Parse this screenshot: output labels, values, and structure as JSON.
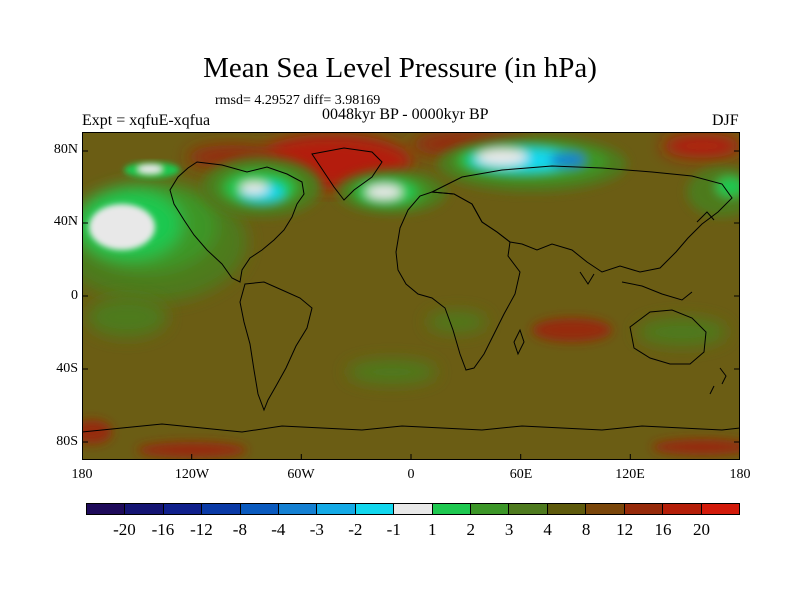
{
  "title": "Mean Sea Level Pressure (in hPa)",
  "stats": "rmsd= 4.29527 diff= 3.98169",
  "experiment": "Expt = xqfuE-xqfua",
  "period": "0048kyr BP - 0000kyr BP",
  "season": "DJF",
  "y_ticks": [
    "80N",
    "40N",
    "0",
    "40S",
    "80S"
  ],
  "x_ticks": [
    "180",
    "120W",
    "60W",
    "0",
    "60E",
    "120E",
    "180"
  ],
  "colorbar": {
    "labels": [
      "-20",
      "-16",
      "-12",
      "-8",
      "-4",
      "-3",
      "-2",
      "-1",
      "1",
      "2",
      "3",
      "4",
      "8",
      "12",
      "16",
      "20"
    ],
    "colors": [
      "#1e0a5a",
      "#141473",
      "#10208c",
      "#0a3aa6",
      "#0a5abe",
      "#1480d2",
      "#14aae6",
      "#12d7ee",
      "#e8e8e8",
      "#1ec850",
      "#3c9628",
      "#4e7a1e",
      "#5e5a0c",
      "#7a460a",
      "#962a0a",
      "#b41e08",
      "#d21a0a"
    ]
  },
  "map_colors": {
    "background": "#6b5d14",
    "land_outline": "#000000",
    "neg_white": "#e8e8e8",
    "light_green": "#1ec850",
    "mid_green": "#3c9628",
    "olive": "#4e7a1e",
    "cyan": "#12d7ee",
    "blue": "#1480d2",
    "red": "#b41e08",
    "dark_red": "#962a0a"
  }
}
